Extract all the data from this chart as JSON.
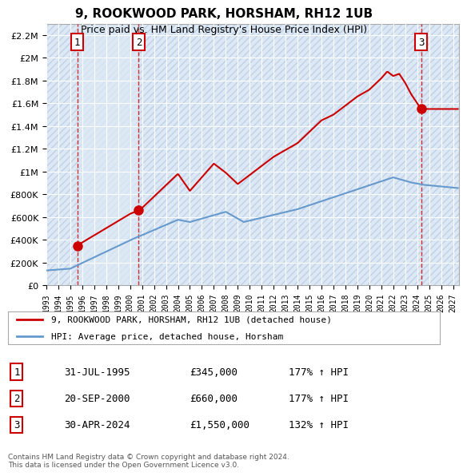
{
  "title": "9, ROOKWOOD PARK, HORSHAM, RH12 1UB",
  "subtitle": "Price paid vs. HM Land Registry's House Price Index (HPI)",
  "xlabel": "",
  "ylabel": "",
  "ylim": [
    0,
    2300000
  ],
  "yticks": [
    0,
    200000,
    400000,
    600000,
    800000,
    1000000,
    1200000,
    1400000,
    1600000,
    1800000,
    2000000,
    2200000
  ],
  "ytick_labels": [
    "£0",
    "£200K",
    "£400K",
    "£600K",
    "£800K",
    "£1M",
    "£1.2M",
    "£1.4M",
    "£1.6M",
    "£1.8M",
    "£2M",
    "£2.2M"
  ],
  "background_color": "#ffffff",
  "plot_bg_color": "#dce9f5",
  "hatch_color": "#c0d0e8",
  "grid_color": "#ffffff",
  "sale_color": "#cc0000",
  "hpi_color": "#6699cc",
  "legend_sale_label": "9, ROOKWOOD PARK, HORSHAM, RH12 1UB (detached house)",
  "legend_hpi_label": "HPI: Average price, detached house, Horsham",
  "transactions": [
    {
      "num": 1,
      "date_x": 1995.58,
      "price": 345000,
      "label": "1",
      "date_str": "31-JUL-1995",
      "price_str": "£345,000",
      "hpi_str": "177% ↑ HPI"
    },
    {
      "num": 2,
      "date_x": 2000.72,
      "price": 660000,
      "label": "2",
      "date_str": "20-SEP-2000",
      "price_str": "£660,000",
      "hpi_str": "177% ↑ HPI"
    },
    {
      "num": 3,
      "date_x": 2024.33,
      "price": 1550000,
      "label": "3",
      "date_str": "30-APR-2024",
      "price_str": "£1,550,000",
      "hpi_str": "132% ↑ HPI"
    }
  ],
  "footnote": "Contains HM Land Registry data © Crown copyright and database right 2024.\nThis data is licensed under the Open Government Licence v3.0.",
  "hpi_x_start": 1993.0,
  "hpi_x_end": 2027.0,
  "xmin": 1993.0,
  "xmax": 2027.5,
  "xtick_years": [
    1993,
    1994,
    1995,
    1996,
    1997,
    1998,
    1999,
    2000,
    2001,
    2002,
    2003,
    2004,
    2005,
    2006,
    2007,
    2008,
    2009,
    2010,
    2011,
    2012,
    2013,
    2014,
    2015,
    2016,
    2017,
    2018,
    2019,
    2020,
    2021,
    2022,
    2023,
    2024,
    2025,
    2026,
    2027
  ]
}
